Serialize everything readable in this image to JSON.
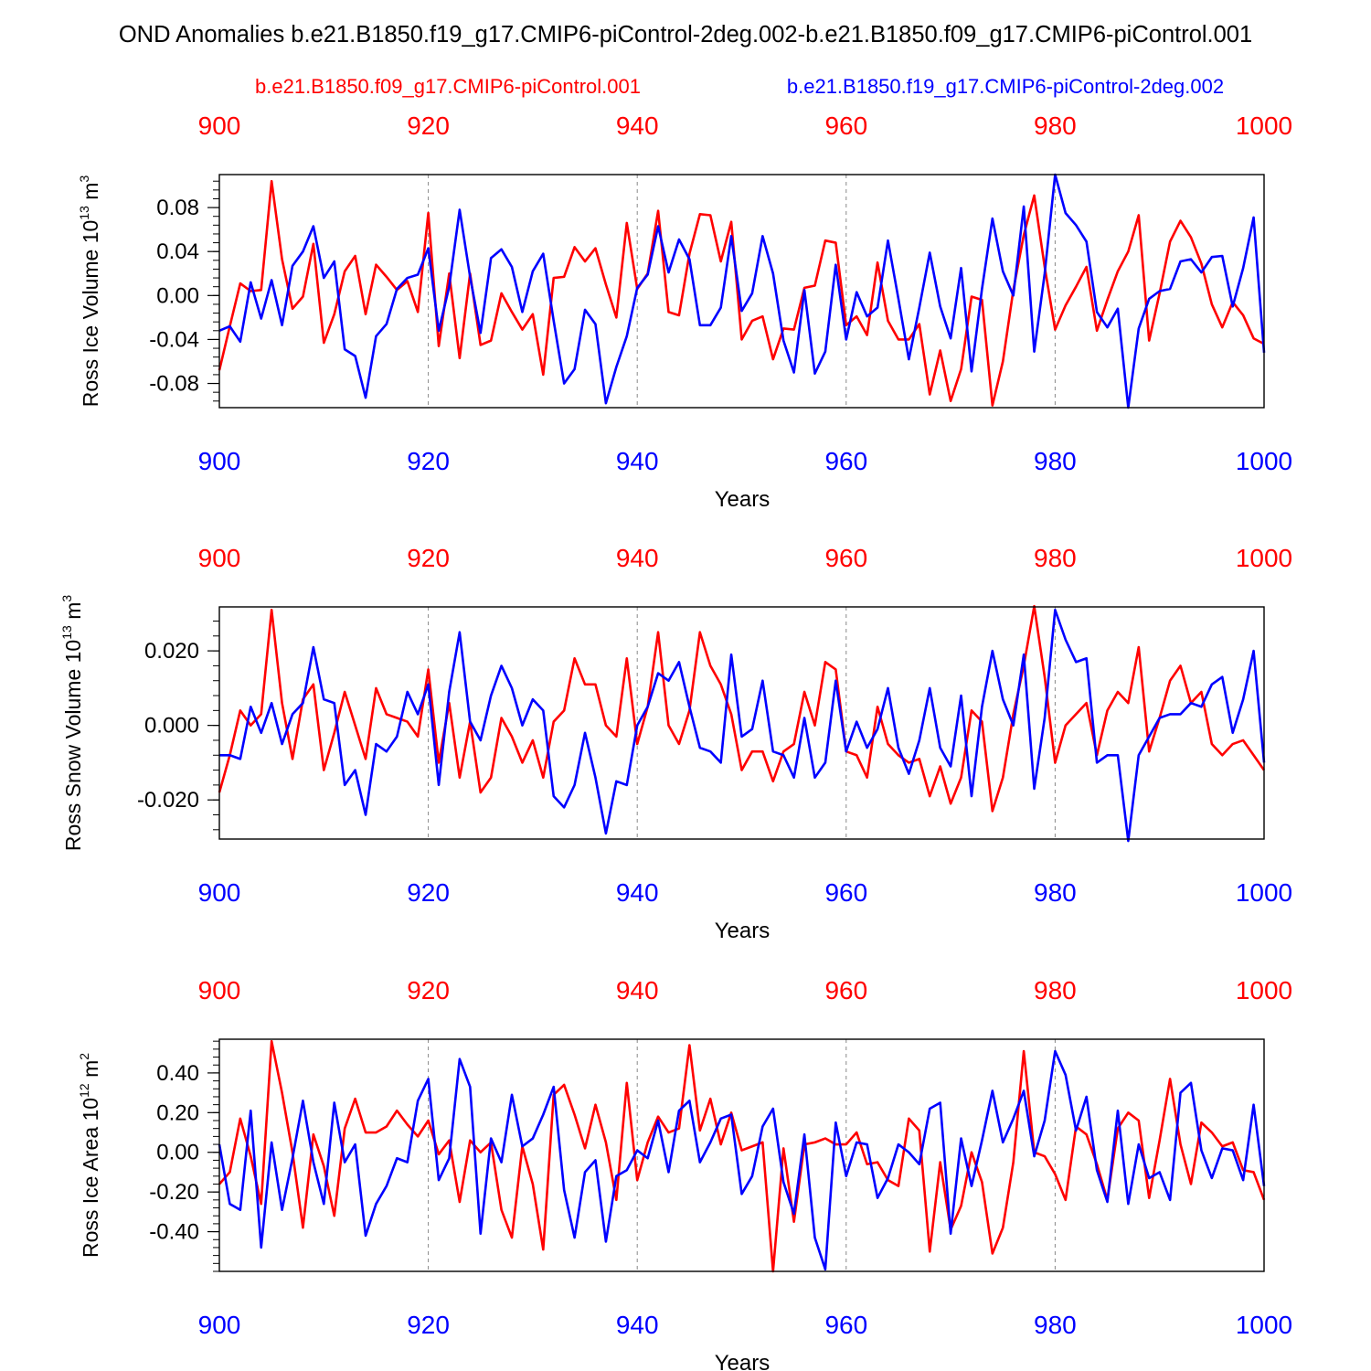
{
  "title": "OND Anomalies b.e21.B1850.f19_g17.CMIP6-piControl-2deg.002-b.e21.B1850.f09_g17.CMIP6-piControl.001",
  "legend": {
    "left": "b.e21.B1850.f09_g17.CMIP6-piControl.001",
    "right": "b.e21.B1850.f19_g17.CMIP6-piControl-2deg.002"
  },
  "colors": {
    "red": "#ff0000",
    "blue": "#0000ff",
    "axis": "#000000",
    "grid": "#888888"
  },
  "chart_data": [
    {
      "type": "line",
      "ylabel": "Ross Ice Volume",
      "ylabel_unit": "10",
      "ylabel_exp": "13",
      "ylabel_m": "m",
      "ylabel_mexp": "3",
      "xlabel": "Years",
      "xlim": [
        900,
        1000
      ],
      "ylim": [
        -0.102,
        0.11
      ],
      "x_ticks": [
        "900",
        "920",
        "940",
        "960",
        "980",
        "1000"
      ],
      "y_tick_labels": [
        "-0.08",
        "-0.04",
        "0.00",
        "0.04",
        "0.08"
      ],
      "y_tick_values": [
        -0.08,
        -0.04,
        0.0,
        0.04,
        0.08
      ],
      "series": [
        {
          "name": "b.e21.B1850.f09_g17.CMIP6-piControl.001",
          "color": "red",
          "values": [
            -0.068,
            -0.028,
            0.011,
            0.004,
            0.005,
            0.104,
            0.033,
            -0.012,
            -0.001,
            0.047,
            -0.043,
            -0.017,
            0.022,
            0.036,
            -0.017,
            0.028,
            0.017,
            0.005,
            0.013,
            -0.015,
            0.075,
            -0.046,
            0.02,
            -0.057,
            0.02,
            -0.045,
            -0.041,
            0.002,
            -0.015,
            -0.031,
            -0.017,
            -0.072,
            0.016,
            0.017,
            0.044,
            0.031,
            0.043,
            0.01,
            -0.02,
            0.066,
            0.006,
            0.02,
            0.077,
            -0.015,
            -0.018,
            0.038,
            0.074,
            0.073,
            0.031,
            0.067,
            -0.04,
            -0.023,
            -0.019,
            -0.058,
            -0.03,
            -0.031,
            0.007,
            0.009,
            0.05,
            0.048,
            -0.027,
            -0.019,
            -0.036,
            0.03,
            -0.023,
            -0.04,
            -0.04,
            -0.026,
            -0.09,
            -0.05,
            -0.096,
            -0.067,
            -0.001,
            -0.004,
            -0.1,
            -0.06,
            0.005,
            0.055,
            0.091,
            0.026,
            -0.031,
            -0.009,
            0.008,
            0.026,
            -0.032,
            -0.004,
            0.022,
            0.04,
            0.073,
            -0.041,
            0.002,
            0.049,
            0.068,
            0.053,
            0.029,
            -0.008,
            -0.029,
            -0.006,
            -0.018,
            -0.039,
            -0.044
          ]
        },
        {
          "name": "b.e21.B1850.f19_g17.CMIP6-piControl-2deg.002",
          "color": "blue",
          "values": [
            -0.032,
            -0.028,
            -0.042,
            0.012,
            -0.021,
            0.014,
            -0.027,
            0.027,
            0.04,
            0.063,
            0.016,
            0.031,
            -0.049,
            -0.055,
            -0.093,
            -0.037,
            -0.026,
            0.006,
            0.016,
            0.019,
            0.043,
            -0.032,
            0.008,
            0.078,
            0.017,
            -0.034,
            0.034,
            0.042,
            0.026,
            -0.015,
            0.022,
            0.038,
            -0.023,
            -0.08,
            -0.067,
            -0.013,
            -0.026,
            -0.098,
            -0.065,
            -0.037,
            0.007,
            0.019,
            0.063,
            0.021,
            0.051,
            0.033,
            -0.027,
            -0.027,
            -0.011,
            0.054,
            -0.014,
            0.002,
            0.054,
            0.02,
            -0.041,
            -0.07,
            0.005,
            -0.071,
            -0.051,
            0.028,
            -0.04,
            0.003,
            -0.019,
            -0.011,
            0.05,
            -0.003,
            -0.058,
            -0.011,
            0.039,
            -0.01,
            -0.039,
            0.025,
            -0.069,
            0.006,
            0.07,
            0.022,
            0.0,
            0.081,
            -0.051,
            0.02,
            0.11,
            0.075,
            0.064,
            0.049,
            -0.015,
            -0.029,
            -0.012,
            -0.102,
            -0.03,
            -0.003,
            0.004,
            0.006,
            0.031,
            0.033,
            0.021,
            0.035,
            0.036,
            -0.01,
            0.025,
            0.071,
            -0.052
          ]
        }
      ]
    },
    {
      "type": "line",
      "ylabel": "Ross Snow Volume",
      "ylabel_unit": "10",
      "ylabel_exp": "13",
      "ylabel_m": "m",
      "ylabel_mexp": "3",
      "xlabel": "Years",
      "xlim": [
        900,
        1000
      ],
      "ylim": [
        -0.0305,
        0.0318
      ],
      "x_ticks": [
        "900",
        "920",
        "940",
        "960",
        "980",
        "1000"
      ],
      "y_tick_labels": [
        "-0.020",
        "0.000",
        "0.020"
      ],
      "y_tick_values": [
        -0.02,
        0.0,
        0.02
      ],
      "series": [
        {
          "name": "b.e21.B1850.f09_g17.CMIP6-piControl.001",
          "color": "red",
          "values": [
            -0.018,
            -0.008,
            0.004,
            0.0,
            0.003,
            0.031,
            0.006,
            -0.009,
            0.007,
            0.011,
            -0.012,
            -0.002,
            0.009,
            0.0,
            -0.009,
            0.01,
            0.003,
            0.002,
            0.001,
            -0.003,
            0.015,
            -0.01,
            0.006,
            -0.014,
            0.001,
            -0.018,
            -0.014,
            0.002,
            -0.003,
            -0.01,
            -0.004,
            -0.014,
            0.001,
            0.004,
            0.018,
            0.011,
            0.011,
            0.0,
            -0.003,
            0.018,
            -0.005,
            0.005,
            0.025,
            0.0,
            -0.005,
            0.004,
            0.025,
            0.016,
            0.011,
            0.003,
            -0.012,
            -0.007,
            -0.007,
            -0.015,
            -0.007,
            -0.005,
            0.009,
            0.0,
            0.017,
            0.015,
            -0.007,
            -0.008,
            -0.014,
            0.005,
            -0.005,
            -0.008,
            -0.01,
            -0.009,
            -0.019,
            -0.011,
            -0.021,
            -0.014,
            0.004,
            0.001,
            -0.023,
            -0.014,
            0.003,
            0.016,
            0.032,
            0.013,
            -0.01,
            0.0,
            0.003,
            0.006,
            -0.008,
            0.004,
            0.009,
            0.006,
            0.021,
            -0.007,
            0.002,
            0.012,
            0.016,
            0.006,
            0.009,
            -0.005,
            -0.008,
            -0.005,
            -0.004,
            -0.008,
            -0.012
          ]
        },
        {
          "name": "b.e21.B1850.f19_g17.CMIP6-piControl-2deg.002",
          "color": "blue",
          "values": [
            -0.008,
            -0.008,
            -0.009,
            0.005,
            -0.002,
            0.006,
            -0.005,
            0.003,
            0.006,
            0.021,
            0.007,
            0.006,
            -0.016,
            -0.012,
            -0.024,
            -0.005,
            -0.007,
            -0.003,
            0.009,
            0.003,
            0.011,
            -0.016,
            0.009,
            0.025,
            0.001,
            -0.004,
            0.008,
            0.016,
            0.01,
            0.0,
            0.007,
            0.004,
            -0.019,
            -0.022,
            -0.016,
            -0.002,
            -0.014,
            -0.029,
            -0.015,
            -0.016,
            0.0,
            0.005,
            0.014,
            0.012,
            0.017,
            0.005,
            -0.006,
            -0.007,
            -0.01,
            0.019,
            -0.003,
            -0.001,
            0.012,
            -0.007,
            -0.008,
            -0.014,
            0.002,
            -0.014,
            -0.01,
            0.012,
            -0.007,
            0.001,
            -0.006,
            -0.001,
            0.01,
            -0.006,
            -0.013,
            -0.004,
            0.01,
            -0.006,
            -0.011,
            0.008,
            -0.019,
            0.005,
            0.02,
            0.007,
            0.0,
            0.019,
            -0.017,
            0.002,
            0.031,
            0.023,
            0.017,
            0.018,
            -0.01,
            -0.008,
            -0.008,
            -0.031,
            -0.008,
            -0.003,
            0.002,
            0.003,
            0.003,
            0.006,
            0.005,
            0.011,
            0.013,
            -0.002,
            0.007,
            0.02,
            -0.01
          ]
        }
      ]
    },
    {
      "type": "line",
      "ylabel": "Ross Ice Area",
      "ylabel_unit": "10",
      "ylabel_exp": "12",
      "ylabel_m": "m",
      "ylabel_mexp": "2",
      "xlabel": "Years",
      "xlim": [
        900,
        1000
      ],
      "ylim": [
        -0.6,
        0.57
      ],
      "x_ticks": [
        "900",
        "920",
        "940",
        "960",
        "980",
        "1000"
      ],
      "y_tick_labels": [
        "-0.40",
        "-0.20",
        "0.00",
        "0.20",
        "0.40"
      ],
      "y_tick_values": [
        -0.4,
        -0.2,
        0.0,
        0.2,
        0.4
      ],
      "series": [
        {
          "name": "b.e21.B1850.f09_g17.CMIP6-piControl.001",
          "color": "red",
          "values": [
            -0.16,
            -0.1,
            0.17,
            -0.02,
            -0.26,
            0.56,
            0.3,
            0.0,
            -0.38,
            0.09,
            -0.07,
            -0.32,
            0.12,
            0.27,
            0.1,
            0.1,
            0.13,
            0.21,
            0.14,
            0.08,
            0.16,
            -0.01,
            0.06,
            -0.25,
            0.06,
            0.0,
            0.05,
            -0.29,
            -0.43,
            0.03,
            -0.16,
            -0.49,
            0.29,
            0.34,
            0.19,
            0.02,
            0.24,
            0.05,
            -0.24,
            0.35,
            -0.14,
            0.05,
            0.18,
            0.1,
            0.12,
            0.54,
            0.11,
            0.27,
            0.04,
            0.2,
            0.01,
            0.03,
            0.05,
            -0.6,
            0.02,
            -0.35,
            0.04,
            0.05,
            0.07,
            0.04,
            0.04,
            0.1,
            -0.06,
            -0.05,
            -0.14,
            -0.17,
            0.17,
            0.11,
            -0.5,
            -0.05,
            -0.39,
            -0.27,
            0.0,
            -0.15,
            -0.51,
            -0.38,
            -0.05,
            0.51,
            0.0,
            -0.02,
            -0.11,
            -0.24,
            0.13,
            0.09,
            -0.06,
            -0.24,
            0.12,
            0.2,
            0.16,
            -0.23,
            0.06,
            0.37,
            0.04,
            -0.16,
            0.15,
            0.1,
            0.03,
            0.05,
            -0.09,
            -0.1,
            -0.24
          ]
        },
        {
          "name": "b.e21.B1850.f19_g17.CMIP6-piControl-2deg.002",
          "color": "blue",
          "values": [
            0.04,
            -0.26,
            -0.29,
            0.21,
            -0.48,
            0.05,
            -0.29,
            -0.03,
            0.26,
            -0.05,
            -0.26,
            0.25,
            -0.05,
            0.04,
            -0.42,
            -0.26,
            -0.17,
            -0.03,
            -0.05,
            0.26,
            0.37,
            -0.14,
            -0.03,
            0.47,
            0.33,
            -0.41,
            0.07,
            -0.05,
            0.29,
            0.03,
            0.07,
            0.19,
            0.33,
            -0.19,
            -0.43,
            -0.1,
            -0.04,
            -0.45,
            -0.12,
            -0.09,
            0.01,
            -0.03,
            0.16,
            -0.1,
            0.21,
            0.26,
            -0.05,
            0.05,
            0.17,
            0.19,
            -0.21,
            -0.12,
            0.13,
            0.22,
            -0.15,
            -0.31,
            0.09,
            -0.43,
            -0.59,
            0.15,
            -0.12,
            0.05,
            0.04,
            -0.23,
            -0.13,
            0.04,
            0.0,
            -0.06,
            0.22,
            0.25,
            -0.41,
            0.07,
            -0.17,
            0.06,
            0.31,
            0.05,
            0.17,
            0.31,
            -0.02,
            0.16,
            0.51,
            0.39,
            0.11,
            0.28,
            -0.09,
            -0.25,
            0.21,
            -0.26,
            0.04,
            -0.13,
            -0.1,
            -0.24,
            0.3,
            0.35,
            0.01,
            -0.13,
            0.02,
            0.01,
            -0.14,
            0.24,
            -0.17
          ]
        }
      ]
    }
  ]
}
